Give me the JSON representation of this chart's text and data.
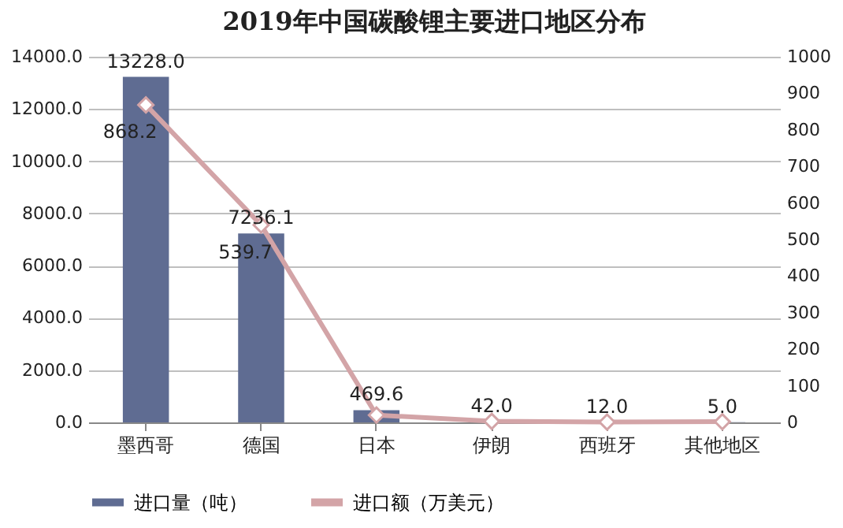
{
  "chart_data": {
    "type": "bar",
    "title": "2019年中国碳酸锂主要进口地区分布",
    "categories": [
      "墨西哥",
      "德国",
      "日本",
      "伊朗",
      "西班牙",
      "其他地区"
    ],
    "series": [
      {
        "name": "进口量（吨）",
        "color": "#5f6c92",
        "values": [
          13228.0,
          7236.1,
          469.6,
          42.0,
          12.0,
          5.0
        ],
        "value_labels": [
          "13228.0",
          "7236.1",
          "469.6",
          "42.0",
          "12.0",
          "5.0"
        ]
      },
      {
        "name": "进口额（万美元）",
        "type": "line",
        "axis": "y2",
        "color": "#d3a4a7",
        "marker": "diamond",
        "values": [
          868.2,
          539.7,
          20,
          3,
          1,
          2
        ],
        "value_labels": [
          "868.2",
          "539.7",
          null,
          null,
          null,
          null
        ]
      }
    ],
    "ylim": [
      0,
      14000
    ],
    "yticks": [
      {
        "value": 0,
        "label": "0.0"
      },
      {
        "value": 2000,
        "label": "2000.0"
      },
      {
        "value": 4000,
        "label": "4000.0"
      },
      {
        "value": 6000,
        "label": "6000.0"
      },
      {
        "value": 8000,
        "label": "8000.0"
      },
      {
        "value": 10000,
        "label": "10000.0"
      },
      {
        "value": 12000,
        "label": "12000.0"
      },
      {
        "value": 14000,
        "label": "14000.0"
      }
    ],
    "y2lim": [
      0,
      1000
    ],
    "y2ticks": [
      0,
      100,
      200,
      300,
      400,
      500,
      600,
      700,
      800,
      900,
      1000
    ],
    "grid": "y",
    "legend": "bottom"
  }
}
